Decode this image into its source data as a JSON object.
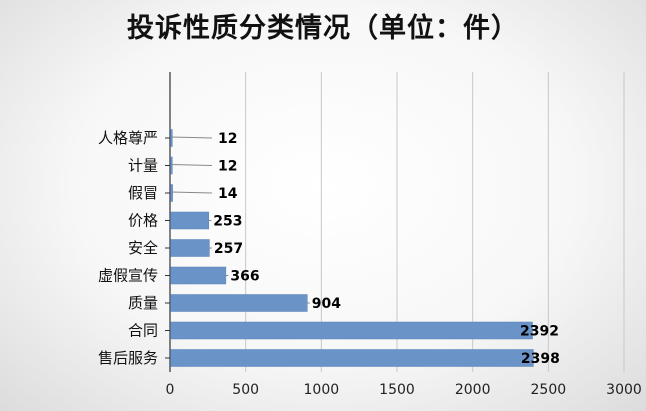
{
  "chart_data": {
    "type": "bar",
    "orientation": "horizontal",
    "title": "投诉性质分类情况（单位：件）",
    "categories": [
      "人格尊严",
      "计量",
      "假冒",
      "价格",
      "安全",
      "虚假宣传",
      "质量",
      "合同",
      "售后服务"
    ],
    "values": [
      12,
      12,
      14,
      253,
      257,
      366,
      904,
      2392,
      2398
    ],
    "xlim": [
      0,
      3000
    ],
    "xticks": [
      "0",
      "500",
      "1000",
      "1500",
      "2000",
      "2500",
      "3000"
    ],
    "grid": true,
    "legend": "none",
    "bar_color": "#6a93c8"
  }
}
